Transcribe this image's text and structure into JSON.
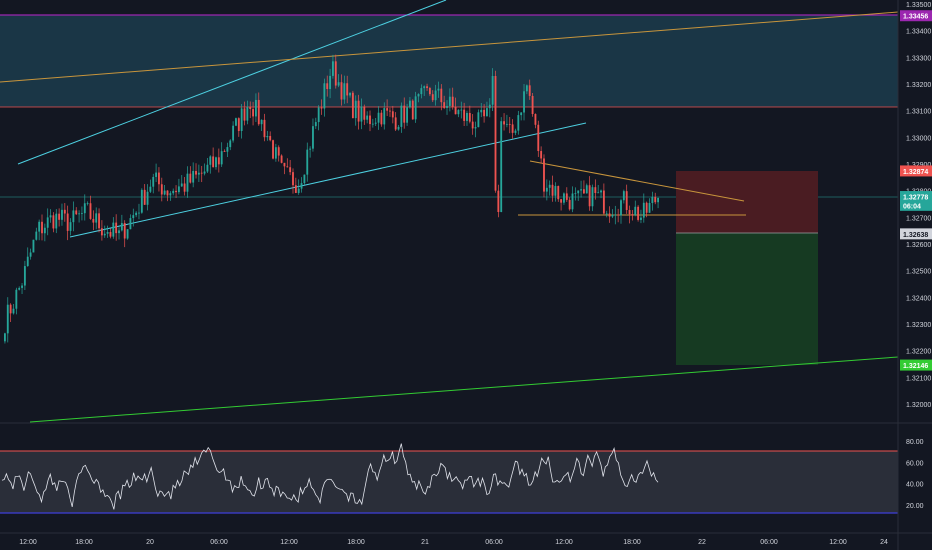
{
  "theme": {
    "background": "#131722",
    "up_color": "#26a69a",
    "down_color": "#ef5350",
    "resistance_zone": "#1c3a4a",
    "stop_zone": "#4a1c22",
    "target_zone": "#163a22",
    "rsi_band": "#2a2e39",
    "trendline_cyan": "#4dd0e1",
    "trendline_orange": "#c8953c",
    "trendline_green": "#33cc33",
    "rsi_upper": "#ef5350",
    "rsi_lower": "#3f3fd9",
    "purple_line": "#9c27b0",
    "axis_text": "#d1d4dc"
  },
  "price_axis": {
    "ticks": [
      "1.33500",
      "1.33400",
      "1.33300",
      "1.33200",
      "1.33100",
      "1.33000",
      "1.32900",
      "1.32800",
      "1.32700",
      "1.32600",
      "1.32500",
      "1.32400",
      "1.32300",
      "1.32200",
      "1.32100",
      "1.32000"
    ],
    "labels": [
      {
        "text": "1.33456",
        "bg": "#9c27b0",
        "fg": "#ffffff",
        "price": 1.33456
      },
      {
        "text": "1.32874",
        "bg": "#ef5350",
        "fg": "#ffffff",
        "price": 1.32874
      },
      {
        "text": "1.32778",
        "bg": "#26a69a",
        "fg": "#ffffff",
        "price": 1.32778
      },
      {
        "text": "06:04",
        "bg": "#26a69a",
        "fg": "#ffffff",
        "price": 1.32745
      },
      {
        "text": "1.32638",
        "bg": "#d1d4dc",
        "fg": "#131722",
        "price": 1.32638
      },
      {
        "text": "1.32146",
        "bg": "#33cc33",
        "fg": "#ffffff",
        "price": 1.32146
      }
    ]
  },
  "rsi_axis": {
    "ticks": [
      "80.00",
      "60.00",
      "40.00",
      "20.00"
    ]
  },
  "time_axis": {
    "ticks": [
      "12:00",
      "18:00",
      "20",
      "06:00",
      "12:00",
      "18:00",
      "21",
      "06:00",
      "12:00",
      "18:00",
      "22",
      "06:00",
      "12:00",
      "24"
    ]
  },
  "chart_data": {
    "type": "candlestick",
    "symbol_pair": "",
    "ylim": [
      1.3195,
      1.335
    ],
    "candles_anchor_closes": [
      1.3231,
      1.3245,
      1.3265,
      1.327,
      1.3268,
      1.3272,
      1.3266,
      1.3263,
      1.3272,
      1.3284,
      1.328,
      1.3282,
      1.3286,
      1.3291,
      1.3302,
      1.3314,
      1.3302,
      1.3286,
      1.3283,
      1.3305,
      1.3326,
      1.3314,
      1.3306,
      1.3309,
      1.3307,
      1.3311,
      1.3317,
      1.3313,
      1.3308,
      1.3305,
      1.331,
      1.33,
      1.332,
      1.3284,
      1.3278,
      1.3276,
      1.3279,
      1.3274,
      1.3276,
      1.327,
      1.3278
    ],
    "trendlines": [
      {
        "name": "",
        "color": "cyan",
        "from": [
          "x0",
          "1.3290"
        ],
        "to": [
          "x1",
          "1.3350"
        ]
      },
      {
        "name": "",
        "color": "cyan",
        "from": [
          "x0",
          "1.3264"
        ],
        "to": [
          "x1",
          "1.3305"
        ]
      },
      {
        "name": "",
        "color": "orange",
        "from": [
          "x0",
          "1.3314"
        ],
        "to": [
          "x1",
          "1.3348"
        ]
      },
      {
        "name": "",
        "color": "green",
        "from": [
          "x0",
          "1.3196"
        ],
        "to": [
          "x1",
          "1.3216"
        ]
      }
    ],
    "rsi_levels": [
      80,
      60,
      40,
      20
    ],
    "rsi_bounds": [
      75,
      25
    ],
    "position": {
      "entry": 1.32778,
      "stop": 1.32874,
      "target": 1.32146,
      "mid": 1.32638
    }
  }
}
